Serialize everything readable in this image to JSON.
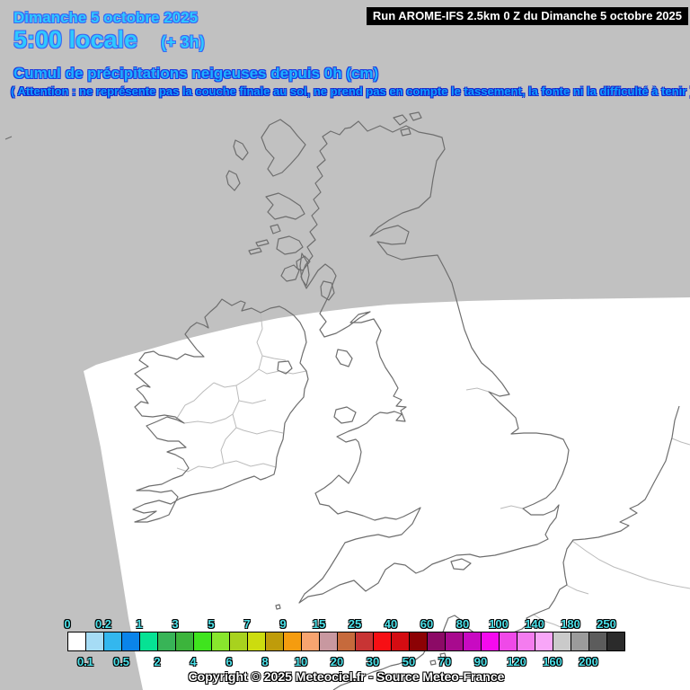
{
  "header": {
    "date_line": "Dimanche 5 octobre 2025",
    "time_line": "5:00 locale",
    "time_offset": "(+ 3h)",
    "title": "Cumul de précipitations neigeuses depuis 0h (cm)",
    "warning": "( Attention : ne représente pas la couche finale au sol, ne prend pas en compte le tassement, la fonte ni la difficulté à tenir )"
  },
  "run_info": {
    "label": "Run AROME-IFS 2.5km 0 Z du Dimanche 5 octobre 2025"
  },
  "colorbar": {
    "unit": "cm",
    "boundaries": [
      "0",
      "0.1",
      "0.2",
      "0.5",
      "1",
      "2",
      "3",
      "4",
      "5",
      "6",
      "7",
      "8",
      "9",
      "10",
      "15",
      "20",
      "25",
      "30",
      "40",
      "50",
      "60",
      "70",
      "80",
      "90",
      "100",
      "120",
      "140",
      "160",
      "180",
      "200",
      "250"
    ],
    "colors": [
      "#FFFFFF",
      "#A6DCF5",
      "#33B7EE",
      "#0A84EA",
      "#06E294",
      "#38B457",
      "#3CB43C",
      "#3FE41E",
      "#88E62D",
      "#A8D21E",
      "#CCDC0F",
      "#BF9C0A",
      "#F59C0F",
      "#F7A470",
      "#C898A0",
      "#C66A3C",
      "#C83434",
      "#F70F14",
      "#D40C12",
      "#8C0205",
      "#8C0A66",
      "#A80A8E",
      "#C80AC2",
      "#F50AEE",
      "#EF49E8",
      "#F47CEF",
      "#F8A6F8",
      "#CACACA",
      "#9B9B9B",
      "#5C5C5C",
      "#2B2B2B"
    ],
    "label_color": "#4DE2EA"
  },
  "footer": {
    "copyright": "Copyright © 2025 Meteociel.fr - Source Meteo-France"
  },
  "map": {
    "background_color": "#C1C1C1",
    "domain_fill": "#FFFFFF",
    "coast_color": "#6E6E6E",
    "border_color": "#BBBBBB"
  }
}
